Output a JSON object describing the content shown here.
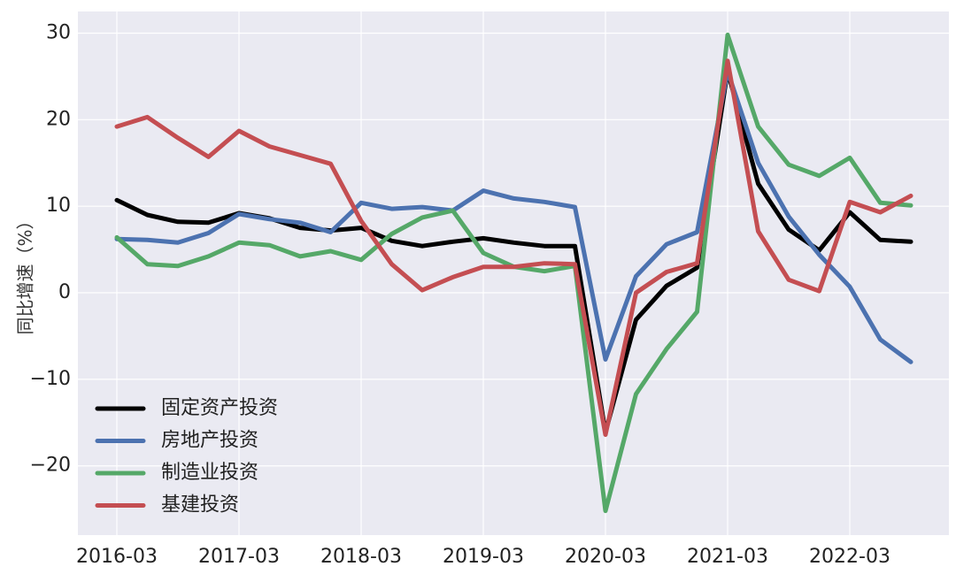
{
  "chart_data": {
    "type": "line",
    "ylabel": "同比增速（%）",
    "xlabel": "",
    "ylim": [
      -28,
      32.5
    ],
    "yticks": [
      -20,
      -10,
      0,
      10,
      20,
      30
    ],
    "ytick_labels": [
      "−20",
      "−10",
      "0",
      "10",
      "20",
      "30"
    ],
    "xticks": [
      "2016-03",
      "2017-03",
      "2018-03",
      "2019-03",
      "2020-03",
      "2021-03",
      "2022-03"
    ],
    "x": [
      "2016-03",
      "2016-06",
      "2016-09",
      "2016-12",
      "2017-03",
      "2017-06",
      "2017-09",
      "2017-12",
      "2018-03",
      "2018-06",
      "2018-09",
      "2018-12",
      "2019-03",
      "2019-06",
      "2019-09",
      "2019-12",
      "2020-03",
      "2020-06",
      "2020-09",
      "2020-12",
      "2021-03",
      "2021-06",
      "2021-09",
      "2021-12",
      "2022-03",
      "2022-06",
      "2022-09"
    ],
    "grid": true,
    "background": "#eaeaf2",
    "legend_position": "lower-left",
    "series": [
      {
        "name": "固定资产投资",
        "color": "#000000",
        "values": [
          10.7,
          9.0,
          8.2,
          8.1,
          9.2,
          8.6,
          7.5,
          7.2,
          7.5,
          6.0,
          5.4,
          5.9,
          6.3,
          5.8,
          5.4,
          5.4,
          -16.1,
          -3.1,
          0.8,
          2.9,
          25.6,
          12.6,
          7.3,
          4.9,
          9.3,
          6.1,
          5.9
        ]
      },
      {
        "name": "房地产投资",
        "color": "#4c72b0",
        "values": [
          6.2,
          6.1,
          5.8,
          6.9,
          9.1,
          8.5,
          8.1,
          7.0,
          10.4,
          9.7,
          9.9,
          9.5,
          11.8,
          10.9,
          10.5,
          9.9,
          -7.7,
          1.9,
          5.6,
          7.0,
          25.6,
          15.0,
          8.8,
          4.4,
          0.7,
          -5.4,
          -8.0
        ]
      },
      {
        "name": "制造业投资",
        "color": "#55a868",
        "values": [
          6.4,
          3.3,
          3.1,
          4.2,
          5.8,
          5.5,
          4.2,
          4.8,
          3.8,
          6.8,
          8.7,
          9.5,
          4.6,
          3.0,
          2.5,
          3.1,
          -25.2,
          -11.7,
          -6.5,
          -2.2,
          29.8,
          19.2,
          14.8,
          13.5,
          15.6,
          10.4,
          10.1
        ]
      },
      {
        "name": "基建投资",
        "color": "#c44e52",
        "values": [
          19.2,
          20.3,
          17.9,
          15.7,
          18.7,
          16.9,
          15.9,
          14.9,
          8.3,
          3.3,
          0.3,
          1.8,
          3.0,
          3.0,
          3.4,
          3.3,
          -16.4,
          0.0,
          2.4,
          3.4,
          26.8,
          7.1,
          1.5,
          0.2,
          10.5,
          9.3,
          11.2
        ]
      }
    ]
  }
}
